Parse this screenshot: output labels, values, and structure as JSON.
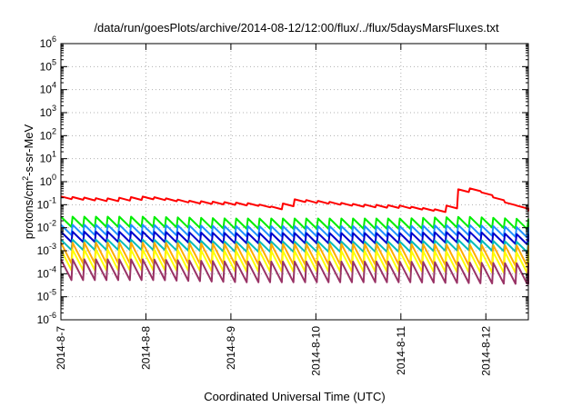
{
  "chart_data": {
    "type": "line",
    "title": "/data/run/goesPlots/archive/2014-08-12/12:00/flux/../flux/5daysMarsFluxes.txt",
    "xlabel": "Coordinated Universal Time (UTC)",
    "ylabel": {
      "prefix": "protons/cm",
      "sup": "2",
      "suffix": "-s-sr-MeV"
    },
    "y_scale": "log",
    "ylim": [
      1e-06,
      1000000.0
    ],
    "y_ticks": [
      {
        "value": 1e-06,
        "base": "10",
        "exp": "-6"
      },
      {
        "value": 1e-05,
        "base": "10",
        "exp": "-5"
      },
      {
        "value": 0.0001,
        "base": "10",
        "exp": "-4"
      },
      {
        "value": 0.001,
        "base": "10",
        "exp": "-3"
      },
      {
        "value": 0.01,
        "base": "10",
        "exp": "-2"
      },
      {
        "value": 0.1,
        "base": "10",
        "exp": "-1"
      },
      {
        "value": 1,
        "base": "10",
        "exp": "0"
      },
      {
        "value": 10,
        "base": "10",
        "exp": "1"
      },
      {
        "value": 100,
        "base": "10",
        "exp": "2"
      },
      {
        "value": 1000,
        "base": "10",
        "exp": "3"
      },
      {
        "value": 10000,
        "base": "10",
        "exp": "4"
      },
      {
        "value": 100000,
        "base": "10",
        "exp": "5"
      },
      {
        "value": 1000000,
        "base": "10",
        "exp": "6"
      }
    ],
    "xlim": [
      "2014-8-7",
      "2014-8-12 12:00"
    ],
    "x_ticks": [
      "2014-8-7",
      "2014-8-8",
      "2014-8-9",
      "2014-8-10",
      "2014-8-11",
      "2014-8-12"
    ],
    "grid": true,
    "legend": "none",
    "sawtooth_period_hours": 3.3,
    "series": [
      {
        "color": "#ff0000",
        "values": [
          [
            "2014-8-7 00:00",
            0.2
          ],
          [
            "2014-8-7 12:00",
            0.16
          ],
          [
            "2014-8-8 00:00",
            0.2
          ],
          [
            "2014-8-8 12:00",
            0.13
          ],
          [
            "2014-8-9 00:00",
            0.11
          ],
          [
            "2014-8-9 06:00",
            0.1
          ],
          [
            "2014-8-9 12:00",
            0.07
          ],
          [
            "2014-8-9 18:00",
            0.15
          ],
          [
            "2014-8-10 00:00",
            0.13
          ],
          [
            "2014-8-10 12:00",
            0.09
          ],
          [
            "2014-8-11 00:00",
            0.08
          ],
          [
            "2014-8-11 12:00",
            0.05
          ],
          [
            "2014-8-11 14:00",
            0.14
          ],
          [
            "2014-8-11 15:30",
            0.4
          ],
          [
            "2014-8-11 20:00",
            0.45
          ],
          [
            "2014-8-12 00:00",
            0.25
          ],
          [
            "2014-8-12 06:00",
            0.1
          ],
          [
            "2014-8-12 12:00",
            0.06
          ]
        ]
      },
      {
        "color": "#00ee00",
        "values": [
          [
            "2014-8-7 00:00",
            0.018
          ],
          [
            "2014-8-8 00:00",
            0.018
          ],
          [
            "2014-8-9 00:00",
            0.015
          ],
          [
            "2014-8-10 00:00",
            0.015
          ],
          [
            "2014-8-11 00:00",
            0.015
          ],
          [
            "2014-8-11 18:00",
            0.018
          ],
          [
            "2014-8-12 12:00",
            0.014
          ]
        ]
      },
      {
        "color": "#1e90ff",
        "values": [
          [
            "2014-8-7 00:00",
            0.008
          ],
          [
            "2014-8-8 00:00",
            0.008
          ],
          [
            "2014-8-9 00:00",
            0.007
          ],
          [
            "2014-8-10 00:00",
            0.007
          ],
          [
            "2014-8-11 00:00",
            0.007
          ],
          [
            "2014-8-11 18:00",
            0.008
          ],
          [
            "2014-8-12 12:00",
            0.006
          ]
        ]
      },
      {
        "color": "#0000cc",
        "values": [
          [
            "2014-8-7 00:00",
            0.004
          ],
          [
            "2014-8-8 00:00",
            0.004
          ],
          [
            "2014-8-9 00:00",
            0.0035
          ],
          [
            "2014-8-10 00:00",
            0.0035
          ],
          [
            "2014-8-11 00:00",
            0.0035
          ],
          [
            "2014-8-11 18:00",
            0.004
          ],
          [
            "2014-8-12 12:00",
            0.003
          ]
        ]
      },
      {
        "color": "#00bbbb",
        "values": [
          [
            "2014-8-7 00:00",
            0.0018
          ],
          [
            "2014-8-8 00:00",
            0.0018
          ],
          [
            "2014-8-9 00:00",
            0.0015
          ],
          [
            "2014-8-10 00:00",
            0.0015
          ],
          [
            "2014-8-11 00:00",
            0.0015
          ],
          [
            "2014-8-11 18:00",
            0.0018
          ],
          [
            "2014-8-12 12:00",
            0.0014
          ]
        ]
      },
      {
        "color": "#ffaa00",
        "values": [
          [
            "2014-8-7 00:00",
            0.0008
          ],
          [
            "2014-8-8 00:00",
            0.0008
          ],
          [
            "2014-8-9 00:00",
            0.0007
          ],
          [
            "2014-8-10 00:00",
            0.0007
          ],
          [
            "2014-8-11 00:00",
            0.0007
          ],
          [
            "2014-8-12 12:00",
            0.0006
          ]
        ]
      },
      {
        "color": "#ffff00",
        "values": [
          [
            "2014-8-7 00:00",
            0.0004
          ],
          [
            "2014-8-8 00:00",
            0.0004
          ],
          [
            "2014-8-9 00:00",
            0.00035
          ],
          [
            "2014-8-10 00:00",
            0.00035
          ],
          [
            "2014-8-11 00:00",
            0.00035
          ],
          [
            "2014-8-12 12:00",
            0.0003
          ]
        ]
      },
      {
        "color": "#993366",
        "values": [
          [
            "2014-8-7 00:00",
            0.00015
          ],
          [
            "2014-8-8 00:00",
            0.00015
          ],
          [
            "2014-8-9 00:00",
            0.00012
          ],
          [
            "2014-8-10 00:00",
            0.00012
          ],
          [
            "2014-8-11 00:00",
            0.00012
          ],
          [
            "2014-8-12 12:00",
            0.0001
          ]
        ]
      }
    ]
  }
}
